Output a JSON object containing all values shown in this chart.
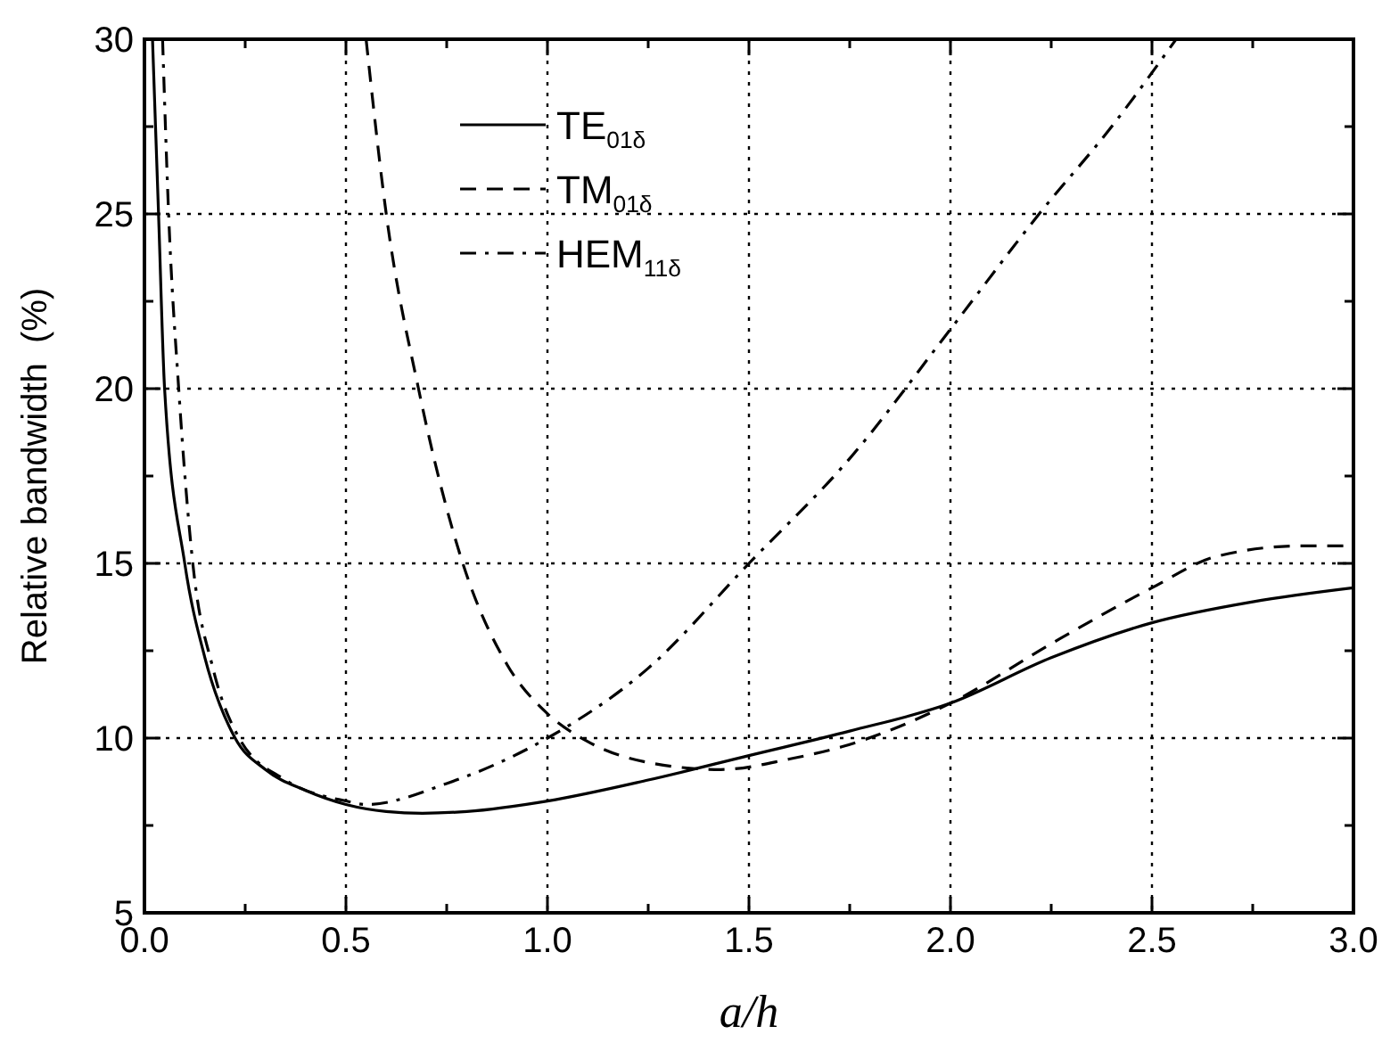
{
  "chart_data": {
    "type": "line",
    "xlabel": "a/h",
    "ylabel": "Relative bandwidth  (%)",
    "xlim": [
      0,
      3
    ],
    "ylim": [
      5,
      30
    ],
    "xticks": [
      {
        "value": 0,
        "label": "0.0"
      },
      {
        "value": 0.25,
        "label": null
      },
      0.5,
      {
        "value": 0.75,
        "label": null
      },
      {
        "value": 1,
        "label": "1.0"
      },
      {
        "value": 1.25,
        "label": null
      },
      1.5,
      {
        "value": 1.75,
        "label": null
      },
      {
        "value": 2,
        "label": "2.0"
      },
      {
        "value": 2.25,
        "label": null
      },
      2.5,
      {
        "value": 2.75,
        "label": null
      },
      {
        "value": 3,
        "label": "3.0"
      }
    ],
    "yticks": [
      5,
      {
        "value": 7.5,
        "label": null
      },
      10,
      {
        "value": 12.5,
        "label": null
      },
      15,
      {
        "value": 17.5,
        "label": null
      },
      20,
      {
        "value": 22.5,
        "label": null
      },
      25,
      {
        "value": 27.5,
        "label": null
      },
      30
    ],
    "grid": true,
    "legend": "top",
    "series": [
      {
        "name": "TE$_{01δ}$",
        "color": "#000000",
        "line_style": "solid",
        "x": [
          0.02,
          0.035,
          0.05,
          0.1,
          0.15,
          0.225,
          0.3,
          0.4,
          0.5,
          0.6,
          0.69,
          0.8,
          1.0,
          1.25,
          1.5,
          1.75,
          2.0,
          2.25,
          2.5,
          2.75,
          3.0
        ],
        "values": [
          30,
          25,
          20,
          15,
          12.3,
          10,
          9.1,
          8.5,
          8.1,
          7.9,
          7.85,
          7.9,
          8.2,
          8.8,
          9.5,
          10.2,
          11.0,
          12.3,
          13.3,
          13.9,
          14.3
        ]
      },
      {
        "name": "TM$_{01δ}$",
        "color": "#000000",
        "line_style": "dashed",
        "x": [
          0.55,
          0.6,
          0.68,
          0.79,
          0.9,
          1.0,
          1.1,
          1.25,
          1.43,
          1.6,
          1.73,
          2.0,
          2.25,
          2.5,
          2.66,
          2.87,
          3.0
        ],
        "values": [
          30,
          25,
          20,
          15,
          12.1,
          10.7,
          9.9,
          9.3,
          9.1,
          9.4,
          9.75,
          11.0,
          12.7,
          14.3,
          15.2,
          15.5,
          15.5
        ]
      },
      {
        "name": "HEM$_{11δ}$",
        "color": "#000000",
        "line_style": "dashdot",
        "x": [
          0.045,
          0.06,
          0.085,
          0.12,
          0.17,
          0.235,
          0.35,
          0.5,
          0.55,
          0.75,
          1.0,
          1.25,
          1.5,
          1.75,
          2.0,
          2.22,
          2.4,
          2.56
        ],
        "values": [
          30,
          25,
          20,
          15,
          12.0,
          10,
          8.8,
          8.2,
          8.1,
          8.7,
          10.0,
          12.0,
          15.0,
          18.0,
          21.7,
          25.0,
          27.5,
          30
        ]
      }
    ]
  }
}
